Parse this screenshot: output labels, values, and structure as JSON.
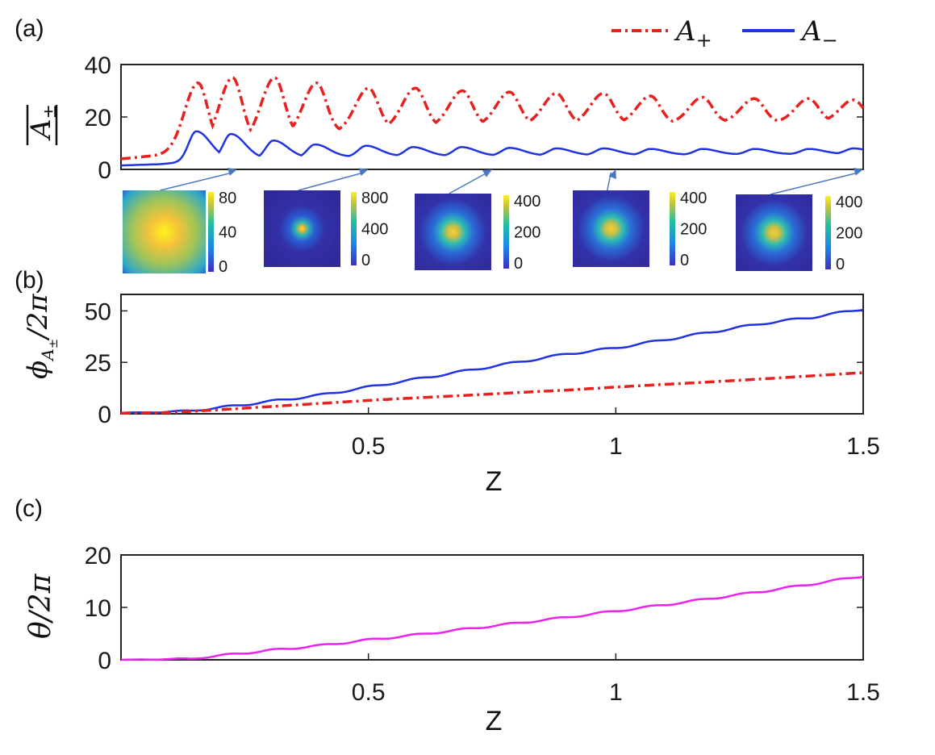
{
  "chart_data": [
    {
      "panel": "(a)",
      "type": "line",
      "ylabel": "|A±|",
      "ylim": [
        0,
        40
      ],
      "xlim": [
        0,
        1.5
      ],
      "yticks": [
        "0",
        "20",
        "40"
      ],
      "legend": {
        "placement": "top-right",
        "entries": [
          "A+",
          "A−"
        ]
      },
      "series": [
        {
          "name": "A+",
          "style": "dash-dot",
          "color": "#e8201e",
          "base": [
            [
              0,
              4
            ],
            [
              0.08,
              5.5
            ],
            [
              0.16,
              8
            ],
            [
              0.24,
              10
            ],
            [
              0.32,
              12
            ],
            [
              0.4,
              13.5
            ],
            [
              0.5,
              15
            ],
            [
              0.6,
              16
            ],
            [
              0.7,
              16.5
            ],
            [
              0.8,
              17
            ],
            [
              0.9,
              17
            ],
            [
              1.0,
              17.5
            ],
            [
              1.1,
              17.5
            ],
            [
              1.2,
              18
            ],
            [
              1.3,
              18
            ],
            [
              1.4,
              18
            ],
            [
              1.5,
              18.5
            ]
          ],
          "peaks": [
            [
              0.155,
              33
            ],
            [
              0.225,
              35
            ],
            [
              0.31,
              35
            ],
            [
              0.395,
              33
            ],
            [
              0.5,
              31
            ],
            [
              0.595,
              31
            ],
            [
              0.69,
              30
            ],
            [
              0.785,
              29.5
            ],
            [
              0.88,
              29
            ],
            [
              0.975,
              29
            ],
            [
              1.07,
              28
            ],
            [
              1.175,
              27.5
            ],
            [
              1.28,
              27
            ],
            [
              1.39,
              27
            ],
            [
              1.48,
              26.5
            ]
          ]
        },
        {
          "name": "A−",
          "style": "solid",
          "color": "#1f33e0",
          "base": [
            [
              0,
              1.5
            ],
            [
              0.08,
              2
            ],
            [
              0.14,
              3
            ],
            [
              0.2,
              3.5
            ],
            [
              0.3,
              4
            ],
            [
              0.5,
              5
            ],
            [
              0.7,
              5.2
            ],
            [
              1.0,
              5.5
            ],
            [
              1.5,
              6
            ]
          ],
          "peaks": [
            [
              0.152,
              14.5
            ],
            [
              0.222,
              13.5
            ],
            [
              0.308,
              11
            ],
            [
              0.392,
              9.5
            ],
            [
              0.495,
              9
            ],
            [
              0.59,
              8.5
            ],
            [
              0.688,
              8.5
            ],
            [
              0.785,
              8.2
            ],
            [
              0.88,
              8
            ],
            [
              0.975,
              8
            ],
            [
              1.07,
              7.8
            ],
            [
              1.175,
              7.8
            ],
            [
              1.28,
              7.8
            ],
            [
              1.39,
              7.8
            ],
            [
              1.48,
              8
            ]
          ]
        }
      ],
      "insets": [
        {
          "z": 0.235,
          "ticks": [
            "80",
            "40",
            "0"
          ],
          "spot": "broad"
        },
        {
          "z": 0.5,
          "ticks": [
            "800",
            "400",
            "0"
          ],
          "spot": "tight"
        },
        {
          "z": 0.75,
          "ticks": [
            "400",
            "200",
            "0"
          ],
          "spot": "medium"
        },
        {
          "z": 1.0,
          "ticks": [
            "400",
            "200",
            "0"
          ],
          "spot": "medium"
        },
        {
          "z": 1.5,
          "ticks": [
            "400",
            "200",
            "0"
          ],
          "spot": "medium"
        }
      ]
    },
    {
      "panel": "(b)",
      "type": "line",
      "ylabel": "φA±/2π",
      "xlabel": "Z",
      "ylim": [
        0,
        58
      ],
      "xlim": [
        0,
        1.5
      ],
      "xticks": [
        "0.5",
        "1",
        "1.5"
      ],
      "yticks": [
        "0",
        "25",
        "50"
      ],
      "series": [
        {
          "name": "A−",
          "style": "solid",
          "color": "#1f33e0",
          "points": [
            [
              0,
              0.5
            ],
            [
              0.08,
              0.8
            ],
            [
              0.14,
              1.5
            ],
            [
              0.2,
              3
            ],
            [
              0.3,
              6
            ],
            [
              0.4,
              9
            ],
            [
              0.5,
              13
            ],
            [
              0.6,
              17
            ],
            [
              0.7,
              21
            ],
            [
              0.8,
              25
            ],
            [
              0.9,
              29
            ],
            [
              1.0,
              32
            ],
            [
              1.1,
              36
            ],
            [
              1.2,
              40
            ],
            [
              1.3,
              44
            ],
            [
              1.4,
              47
            ],
            [
              1.5,
              51
            ]
          ]
        },
        {
          "name": "A+",
          "style": "dash-dot",
          "color": "#e8201e",
          "points": [
            [
              0,
              0.3
            ],
            [
              0.1,
              0.6
            ],
            [
              0.2,
              2
            ],
            [
              0.3,
              3.5
            ],
            [
              0.4,
              5
            ],
            [
              0.5,
              6.5
            ],
            [
              0.6,
              7.8
            ],
            [
              0.7,
              9
            ],
            [
              0.8,
              10.3
            ],
            [
              0.9,
              11.5
            ],
            [
              1.0,
              13
            ],
            [
              1.1,
              14.3
            ],
            [
              1.2,
              15.6
            ],
            [
              1.3,
              17
            ],
            [
              1.4,
              18.5
            ],
            [
              1.5,
              20
            ]
          ]
        }
      ]
    },
    {
      "panel": "(c)",
      "type": "line",
      "ylabel": "θ/2π",
      "xlabel": "Z",
      "ylim": [
        0,
        20
      ],
      "xlim": [
        0,
        1.5
      ],
      "xticks": [
        "0.5",
        "1",
        "1.5"
      ],
      "yticks": [
        "0",
        "10",
        "20"
      ],
      "series": [
        {
          "name": "θ",
          "style": "solid",
          "color": "#ee22ee",
          "points": [
            [
              0,
              0
            ],
            [
              0.14,
              0.2
            ],
            [
              0.2,
              0.8
            ],
            [
              0.3,
              1.8
            ],
            [
              0.4,
              2.7
            ],
            [
              0.5,
              3.8
            ],
            [
              0.6,
              4.8
            ],
            [
              0.7,
              5.9
            ],
            [
              0.8,
              7
            ],
            [
              0.9,
              8.1
            ],
            [
              1.0,
              9.3
            ],
            [
              1.1,
              10.5
            ],
            [
              1.2,
              11.8
            ],
            [
              1.3,
              13.1
            ],
            [
              1.4,
              14.5
            ],
            [
              1.5,
              16
            ]
          ]
        }
      ]
    }
  ]
}
